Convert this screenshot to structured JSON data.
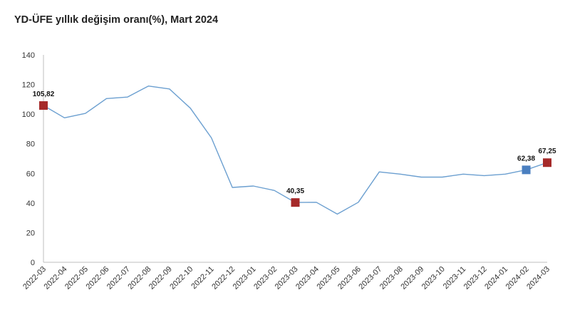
{
  "chart_data": {
    "type": "line",
    "title": "YD-ÜFE yıllık değişim oranı(%), Mart 2024",
    "xlabel": "",
    "ylabel": "",
    "ylim": [
      0,
      140
    ],
    "yticks": [
      0,
      20,
      40,
      60,
      80,
      100,
      120,
      140
    ],
    "grid": false,
    "categories": [
      "2022-03",
      "2022-04",
      "2022-05",
      "2022-06",
      "2022-07",
      "2022-08",
      "2022-09",
      "2022-10",
      "2022-11",
      "2022-12",
      "2023-01",
      "2023-02",
      "2023-03",
      "2023-04",
      "2023-05",
      "2023-06",
      "2023-07",
      "2023-08",
      "2023-09",
      "2023-10",
      "2023-11",
      "2023-12",
      "2024-01",
      "2024-02",
      "2024-03"
    ],
    "series": [
      {
        "values": [
          105.82,
          97.5,
          100.5,
          110.5,
          111.5,
          119,
          117,
          104,
          84,
          50.5,
          51.5,
          48.5,
          40.35,
          40.5,
          32.5,
          40.5,
          61,
          59.5,
          57.5,
          57.5,
          59.5,
          58.5,
          59.5,
          62.38,
          67.25
        ],
        "color": "#6b9fd0"
      }
    ],
    "markers": [
      {
        "category": "2022-03",
        "value": 105.82,
        "label": "105,82",
        "color": "#a52a2a"
      },
      {
        "category": "2023-03",
        "value": 40.35,
        "label": "40,35",
        "color": "#a52a2a"
      },
      {
        "category": "2024-02",
        "value": 62.38,
        "label": "62,38",
        "color": "#4a7fc0"
      },
      {
        "category": "2024-03",
        "value": 67.25,
        "label": "67,25",
        "color": "#a52a2a"
      }
    ]
  }
}
